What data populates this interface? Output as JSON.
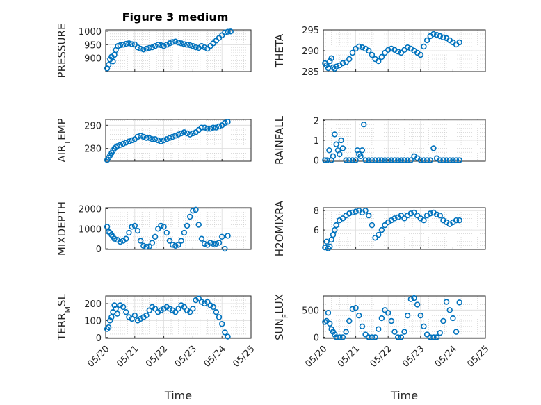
{
  "figure": {
    "title": "Figure 3 medium",
    "marker_color": "#0072bd"
  },
  "chart_data": [
    {
      "type": "scatter",
      "ylabel": "PRESSURE",
      "ylabel_main": "PRESSURE",
      "ylabel_sub": "",
      "ylabel_tail": "",
      "title": "Figure 3 medium",
      "xlabel": "",
      "ylim": [
        850,
        1005
      ],
      "yticks": [
        "900",
        "950",
        "1000"
      ],
      "ytick_values": [
        900,
        950,
        1000
      ],
      "x": [
        20.05,
        20.1,
        20.15,
        20.2,
        20.25,
        20.3,
        20.35,
        20.42,
        20.5,
        20.6,
        20.7,
        20.8,
        20.9,
        21.0,
        21.1,
        21.2,
        21.3,
        21.4,
        21.5,
        21.6,
        21.7,
        21.8,
        21.9,
        22.0,
        22.1,
        22.2,
        22.3,
        22.4,
        22.5,
        22.6,
        22.7,
        22.8,
        22.9,
        23.0,
        23.1,
        23.2,
        23.3,
        23.4,
        23.5,
        23.6,
        23.7,
        23.8,
        23.9,
        24.0,
        24.1,
        24.2,
        24.3
      ],
      "y": [
        862,
        875,
        895,
        905,
        888,
        912,
        930,
        945,
        948,
        950,
        953,
        955,
        952,
        951,
        940,
        935,
        932,
        935,
        938,
        940,
        945,
        950,
        948,
        945,
        950,
        955,
        960,
        962,
        958,
        955,
        952,
        950,
        948,
        945,
        940,
        938,
        945,
        940,
        935,
        945,
        955,
        965,
        975,
        985,
        995,
        998,
        999
      ]
    },
    {
      "type": "scatter",
      "ylabel": "THETA",
      "ylabel_main": "THETA",
      "ylabel_sub": "",
      "ylabel_tail": "",
      "xlabel": "",
      "ylim": [
        285,
        295
      ],
      "yticks": [
        "285",
        "290",
        "295"
      ],
      "ytick_values": [
        285,
        290,
        295
      ],
      "x": [
        20.05,
        20.1,
        20.15,
        20.2,
        20.25,
        20.3,
        20.35,
        20.4,
        20.5,
        20.6,
        20.7,
        20.8,
        20.9,
        21.0,
        21.1,
        21.2,
        21.3,
        21.4,
        21.5,
        21.6,
        21.7,
        21.8,
        21.9,
        22.0,
        22.1,
        22.2,
        22.3,
        22.4,
        22.5,
        22.6,
        22.7,
        22.8,
        22.9,
        23.0,
        23.1,
        23.2,
        23.3,
        23.4,
        23.5,
        23.6,
        23.7,
        23.8,
        23.9,
        24.0,
        24.1,
        24.2
      ],
      "y": [
        287,
        286.5,
        285.8,
        287.5,
        288.2,
        286,
        285.7,
        286.2,
        286.5,
        287,
        287.2,
        288,
        289.5,
        290.5,
        291,
        290.8,
        290.5,
        290,
        289,
        288,
        287.5,
        288.5,
        289.5,
        290.2,
        290.5,
        290.2,
        289.8,
        289.5,
        290.2,
        290.8,
        290.5,
        290,
        289.5,
        289,
        291,
        292.5,
        293.5,
        294,
        293.8,
        293.5,
        293.2,
        293,
        292.5,
        292,
        291.5,
        292
      ]
    },
    {
      "type": "scatter",
      "ylabel": "AIR_TEMP",
      "ylabel_main": "AIR",
      "ylabel_sub": "T",
      "ylabel_tail": "EMP",
      "xlabel": "",
      "ylim": [
        274.5,
        292.5
      ],
      "yticks": [
        "280",
        "290"
      ],
      "ytick_values": [
        280,
        290
      ],
      "x": [
        20.05,
        20.1,
        20.15,
        20.2,
        20.25,
        20.3,
        20.35,
        20.4,
        20.5,
        20.6,
        20.7,
        20.8,
        20.9,
        21.0,
        21.1,
        21.2,
        21.3,
        21.4,
        21.5,
        21.6,
        21.7,
        21.8,
        21.9,
        22.0,
        22.1,
        22.2,
        22.3,
        22.4,
        22.5,
        22.6,
        22.7,
        22.8,
        22.9,
        23.0,
        23.1,
        23.2,
        23.3,
        23.4,
        23.5,
        23.6,
        23.7,
        23.8,
        23.9,
        24.0,
        24.1,
        24.2
      ],
      "y": [
        275,
        276,
        277,
        278,
        279,
        280,
        280.5,
        281,
        281.5,
        282,
        282.5,
        283,
        283.5,
        284,
        285,
        285.5,
        285,
        284.5,
        284.5,
        284,
        284,
        283.5,
        283,
        283.5,
        284,
        284.5,
        285,
        285.5,
        286,
        286.5,
        287,
        286.5,
        286,
        286.5,
        287,
        288,
        289,
        289,
        288.5,
        288.5,
        289,
        289,
        289.5,
        290,
        291,
        291.5
      ]
    },
    {
      "type": "scatter",
      "ylabel": "RAINFALL",
      "ylabel_main": "RAINFALL",
      "ylabel_sub": "",
      "ylabel_tail": "",
      "xlabel": "",
      "ylim": [
        -0.05,
        2.05
      ],
      "yticks": [
        "0",
        "1",
        "2"
      ],
      "ytick_values": [
        0,
        1,
        2
      ],
      "x": [
        20.05,
        20.12,
        20.18,
        20.25,
        20.3,
        20.35,
        20.4,
        20.45,
        20.5,
        20.55,
        20.6,
        20.7,
        20.8,
        20.9,
        21.0,
        21.05,
        21.1,
        21.15,
        21.2,
        21.25,
        21.3,
        21.4,
        21.5,
        21.6,
        21.7,
        21.8,
        21.9,
        22.0,
        22.1,
        22.2,
        22.3,
        22.4,
        22.5,
        22.6,
        22.7,
        22.8,
        22.9,
        23.0,
        23.1,
        23.2,
        23.3,
        23.4,
        23.5,
        23.6,
        23.7,
        23.8,
        23.9,
        24.0,
        24.1,
        24.2
      ],
      "y": [
        0,
        0,
        0.5,
        0,
        0.2,
        1.3,
        0.8,
        0.5,
        0.3,
        1.0,
        0.6,
        0,
        0,
        0,
        0,
        0.5,
        0.3,
        0.2,
        0.5,
        1.8,
        0,
        0,
        0,
        0,
        0,
        0,
        0,
        0,
        0,
        0,
        0,
        0,
        0,
        0,
        0,
        0.2,
        0.1,
        0,
        0,
        0,
        0,
        0.6,
        0.1,
        0,
        0,
        0,
        0,
        0,
        0,
        0
      ]
    },
    {
      "type": "scatter",
      "ylabel": "MIXDEPTH",
      "ylabel_main": "MIXDEPTH",
      "ylabel_sub": "",
      "ylabel_tail": "",
      "xlabel": "",
      "ylim": [
        -30,
        2050
      ],
      "yticks": [
        "0",
        "1000",
        "2000"
      ],
      "ytick_values": [
        0,
        1000,
        2000
      ],
      "x": [
        20.05,
        20.1,
        20.15,
        20.2,
        20.25,
        20.3,
        20.4,
        20.5,
        20.6,
        20.7,
        20.8,
        20.9,
        21.0,
        21.1,
        21.2,
        21.3,
        21.4,
        21.5,
        21.6,
        21.7,
        21.8,
        21.9,
        22.0,
        22.1,
        22.2,
        22.3,
        22.4,
        22.5,
        22.6,
        22.7,
        22.8,
        22.9,
        23.0,
        23.1,
        23.2,
        23.3,
        23.4,
        23.5,
        23.6,
        23.7,
        23.8,
        23.9,
        24.0,
        24.1,
        24.2
      ],
      "y": [
        1100,
        850,
        800,
        700,
        600,
        500,
        450,
        350,
        400,
        500,
        800,
        1100,
        1150,
        900,
        400,
        150,
        100,
        120,
        300,
        600,
        1000,
        1150,
        1100,
        800,
        400,
        200,
        150,
        200,
        400,
        800,
        1150,
        1600,
        1900,
        1950,
        1200,
        500,
        250,
        200,
        300,
        250,
        250,
        300,
        600,
        0,
        650
      ]
    },
    {
      "type": "scatter",
      "ylabel": "H2OMIXRA",
      "ylabel_main": "H2OMIXRA",
      "ylabel_sub": "",
      "ylabel_tail": "",
      "xlabel": "",
      "ylim": [
        4,
        8.3
      ],
      "yticks": [
        "6",
        "8"
      ],
      "ytick_values": [
        6,
        8
      ],
      "x": [
        20.05,
        20.1,
        20.15,
        20.2,
        20.25,
        20.3,
        20.35,
        20.4,
        20.5,
        20.6,
        20.7,
        20.8,
        20.9,
        21.0,
        21.1,
        21.2,
        21.3,
        21.4,
        21.5,
        21.6,
        21.7,
        21.8,
        21.9,
        22.0,
        22.1,
        22.2,
        22.3,
        22.4,
        22.5,
        22.6,
        22.7,
        22.8,
        22.9,
        23.0,
        23.1,
        23.2,
        23.3,
        23.4,
        23.5,
        23.6,
        23.7,
        23.8,
        23.9,
        24.0,
        24.1,
        24.2
      ],
      "y": [
        4.2,
        4.8,
        4.1,
        4.3,
        5.0,
        5.5,
        6.0,
        6.5,
        7.0,
        7.2,
        7.5,
        7.7,
        7.8,
        7.9,
        8.0,
        7.8,
        8.0,
        7.5,
        6.5,
        5.2,
        5.5,
        6.0,
        6.5,
        6.8,
        7.0,
        7.2,
        7.3,
        7.5,
        7.2,
        7.5,
        7.7,
        7.8,
        7.5,
        7.2,
        7.0,
        7.5,
        7.7,
        7.8,
        7.6,
        7.5,
        7.0,
        6.8,
        6.6,
        6.8,
        7.0,
        7.0
      ]
    },
    {
      "type": "scatter",
      "ylabel": "TERR_MSL",
      "ylabel_main": "TERR",
      "ylabel_sub": "M",
      "ylabel_tail": "SL",
      "xlabel": "Time",
      "ylim": [
        -5,
        245
      ],
      "yticks": [
        "0",
        "100",
        "200"
      ],
      "ytick_values": [
        0,
        100,
        200
      ],
      "xticks": [
        "05/20",
        "05/21",
        "05/22",
        "05/23",
        "05/24",
        "05/25"
      ],
      "x": [
        20.05,
        20.1,
        20.15,
        20.2,
        20.25,
        20.3,
        20.35,
        20.4,
        20.5,
        20.6,
        20.7,
        20.8,
        20.9,
        21.0,
        21.1,
        21.2,
        21.3,
        21.4,
        21.5,
        21.6,
        21.7,
        21.8,
        21.9,
        22.0,
        22.1,
        22.2,
        22.3,
        22.4,
        22.5,
        22.6,
        22.7,
        22.8,
        22.9,
        23.0,
        23.1,
        23.2,
        23.3,
        23.4,
        23.5,
        23.6,
        23.7,
        23.8,
        23.9,
        24.0,
        24.1,
        24.2
      ],
      "y": [
        50,
        60,
        100,
        120,
        150,
        190,
        170,
        140,
        190,
        180,
        150,
        120,
        110,
        130,
        100,
        110,
        120,
        130,
        160,
        180,
        170,
        150,
        160,
        170,
        180,
        170,
        160,
        150,
        170,
        190,
        180,
        160,
        150,
        170,
        220,
        230,
        210,
        200,
        210,
        190,
        180,
        150,
        120,
        80,
        30,
        5
      ]
    },
    {
      "type": "scatter",
      "ylabel": "SUN_FLUX",
      "ylabel_main": "SUN",
      "ylabel_sub": "F",
      "ylabel_tail": "LUX",
      "xlabel": "Time",
      "ylim": [
        -20,
        760
      ],
      "yticks": [
        "0",
        "500"
      ],
      "ytick_values": [
        0,
        500
      ],
      "xticks": [
        "05/20",
        "05/21",
        "05/22",
        "05/23",
        "05/24",
        "05/25"
      ],
      "x": [
        20.05,
        20.1,
        20.15,
        20.2,
        20.25,
        20.3,
        20.35,
        20.4,
        20.5,
        20.6,
        20.7,
        20.8,
        20.9,
        21.0,
        21.1,
        21.2,
        21.3,
        21.4,
        21.5,
        21.6,
        21.7,
        21.8,
        21.9,
        22.0,
        22.1,
        22.2,
        22.3,
        22.4,
        22.5,
        22.6,
        22.7,
        22.8,
        22.9,
        23.0,
        23.1,
        23.2,
        23.3,
        23.4,
        23.5,
        23.6,
        23.7,
        23.8,
        23.9,
        24.0,
        24.1,
        24.2
      ],
      "y": [
        280,
        300,
        450,
        250,
        150,
        100,
        50,
        0,
        0,
        0,
        100,
        300,
        520,
        540,
        400,
        200,
        50,
        0,
        0,
        0,
        150,
        350,
        500,
        450,
        300,
        100,
        0,
        0,
        100,
        400,
        700,
        720,
        600,
        400,
        200,
        50,
        0,
        0,
        0,
        80,
        300,
        650,
        500,
        350,
        100,
        640
      ]
    }
  ]
}
